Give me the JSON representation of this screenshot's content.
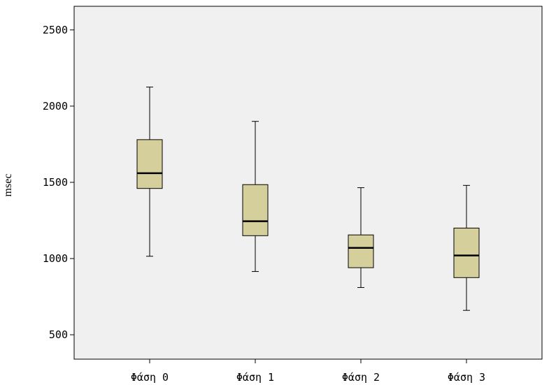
{
  "chart_data": {
    "type": "boxplot",
    "title": "",
    "xlabel": "",
    "ylabel": "msec",
    "ylim": [
      340,
      2655
    ],
    "yticks": [
      500,
      1000,
      1500,
      2000,
      2500
    ],
    "ytick_labels": [
      "500",
      "1000",
      "1500",
      "2000",
      "2500"
    ],
    "categories": [
      "Φάση 0",
      "Φάση 1",
      "Φάση 2",
      "Φάση 3"
    ],
    "boxes": [
      {
        "label": "Φάση 0",
        "whisker_low": 1015,
        "q1": 1460,
        "median": 1560,
        "q3": 1780,
        "whisker_high": 2125
      },
      {
        "label": "Φάση 1",
        "whisker_low": 915,
        "q1": 1150,
        "median": 1245,
        "q3": 1485,
        "whisker_high": 1900
      },
      {
        "label": "Φάση 2",
        "whisker_low": 810,
        "q1": 940,
        "median": 1070,
        "q3": 1155,
        "whisker_high": 1465
      },
      {
        "label": "Φάση 3",
        "whisker_low": 660,
        "q1": 875,
        "median": 1020,
        "q3": 1200,
        "whisker_high": 1480
      }
    ],
    "grid": false,
    "legend": "none",
    "colors": {
      "plot_background": "#f0f0f0",
      "box_fill": "#d5cf9c",
      "stroke": "#000000"
    }
  }
}
